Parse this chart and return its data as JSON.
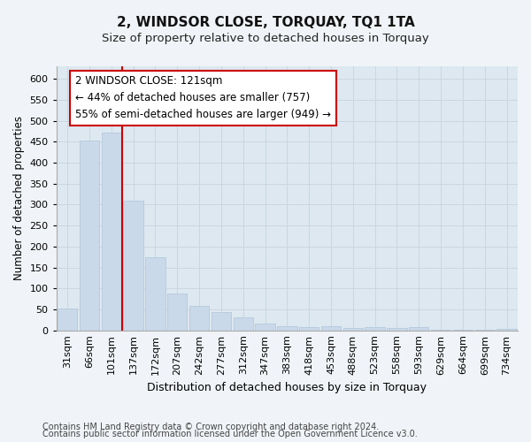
{
  "title": "2, WINDSOR CLOSE, TORQUAY, TQ1 1TA",
  "subtitle": "Size of property relative to detached houses in Torquay",
  "xlabel": "Distribution of detached houses by size in Torquay",
  "ylabel": "Number of detached properties",
  "categories": [
    "31sqm",
    "66sqm",
    "101sqm",
    "137sqm",
    "172sqm",
    "207sqm",
    "242sqm",
    "277sqm",
    "312sqm",
    "347sqm",
    "383sqm",
    "418sqm",
    "453sqm",
    "488sqm",
    "523sqm",
    "558sqm",
    "593sqm",
    "629sqm",
    "664sqm",
    "699sqm",
    "734sqm"
  ],
  "values": [
    52,
    452,
    472,
    310,
    175,
    88,
    58,
    44,
    31,
    16,
    10,
    7,
    10,
    6,
    8,
    6,
    7,
    2,
    2,
    2,
    3
  ],
  "bar_color": "#c9d9ea",
  "bar_edge_color": "#b0c4d8",
  "grid_color": "#c8d4de",
  "bg_color": "#dde8f0",
  "fig_color": "#f0f4f8",
  "vline_x": 2.5,
  "vline_color": "#cc0000",
  "annotation_line1": "2 WINDSOR CLOSE: 121sqm",
  "annotation_line2": "← 44% of detached houses are smaller (757)",
  "annotation_line3": "55% of semi-detached houses are larger (949) →",
  "annotation_box_color": "#ffffff",
  "annotation_box_edge": "#cc0000",
  "ylim": [
    0,
    630
  ],
  "yticks": [
    0,
    50,
    100,
    150,
    200,
    250,
    300,
    350,
    400,
    450,
    500,
    550,
    600
  ],
  "footer1": "Contains HM Land Registry data © Crown copyright and database right 2024.",
  "footer2": "Contains public sector information licensed under the Open Government Licence v3.0.",
  "title_fontsize": 11,
  "subtitle_fontsize": 9.5,
  "xlabel_fontsize": 9,
  "ylabel_fontsize": 8.5,
  "tick_fontsize": 8,
  "annot_fontsize": 8.5,
  "footer_fontsize": 7
}
